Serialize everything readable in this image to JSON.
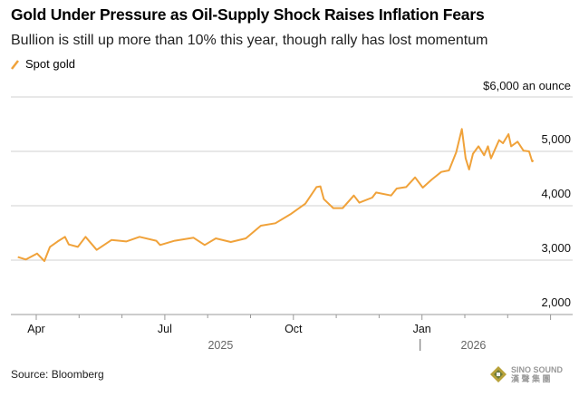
{
  "header": {
    "title": "Gold Under Pressure as Oil-Supply Shock Raises Inflation Fears",
    "subtitle": "Bullion is still up more than 10% this year, though rally has lost momentum"
  },
  "footer": {
    "source": "Source: Bloomberg",
    "logo_text": "SINO SOUND",
    "logo_subtext": "漢 聲 集 團"
  },
  "chart_data": {
    "type": "line",
    "title": "Gold Under Pressure as Oil-Supply Shock Raises Inflation Fears",
    "legend": [
      {
        "name": "Spot gold",
        "color": "#f0a23a"
      }
    ],
    "legend_placement": "top-left",
    "ylabel": "$6,000 an ounce",
    "ylim": [
      2000,
      6000
    ],
    "yticks": [
      {
        "v": 6000,
        "label": "$6,000 an ounce"
      },
      {
        "v": 5000,
        "label": "5,000"
      },
      {
        "v": 4000,
        "label": "4,000"
      },
      {
        "v": 3000,
        "label": "3,000"
      },
      {
        "v": 2000,
        "label": "2,000"
      }
    ],
    "x_unit": "months since 2025-04-01",
    "xlim": [
      -0.55,
      12.3
    ],
    "xticks": [
      {
        "m": 0,
        "label": "Apr"
      },
      {
        "m": 3,
        "label": "Jul"
      },
      {
        "m": 6,
        "label": "Oct"
      },
      {
        "m": 9,
        "label": "Jan"
      }
    ],
    "years": [
      {
        "m": 4.3,
        "label": "2025"
      },
      {
        "m": 10.2,
        "label": "2026"
      }
    ],
    "grid": true,
    "series": [
      {
        "name": "Spot gold",
        "color": "#f0a23a",
        "points": [
          [
            -0.43,
            3056
          ],
          [
            -0.24,
            3011
          ],
          [
            0.02,
            3122
          ],
          [
            0.19,
            2983
          ],
          [
            0.32,
            3244
          ],
          [
            0.5,
            3344
          ],
          [
            0.67,
            3428
          ],
          [
            0.76,
            3289
          ],
          [
            0.97,
            3244
          ],
          [
            1.15,
            3428
          ],
          [
            1.41,
            3189
          ],
          [
            1.76,
            3372
          ],
          [
            2.1,
            3344
          ],
          [
            2.41,
            3428
          ],
          [
            2.8,
            3356
          ],
          [
            2.89,
            3278
          ],
          [
            3.23,
            3356
          ],
          [
            3.67,
            3411
          ],
          [
            3.93,
            3278
          ],
          [
            4.19,
            3400
          ],
          [
            4.54,
            3333
          ],
          [
            4.89,
            3400
          ],
          [
            5.24,
            3633
          ],
          [
            5.58,
            3678
          ],
          [
            5.93,
            3844
          ],
          [
            6.28,
            4039
          ],
          [
            6.54,
            4344
          ],
          [
            6.63,
            4356
          ],
          [
            6.71,
            4122
          ],
          [
            6.93,
            3956
          ],
          [
            7.15,
            3956
          ],
          [
            7.41,
            4189
          ],
          [
            7.54,
            4056
          ],
          [
            7.84,
            4150
          ],
          [
            7.93,
            4244
          ],
          [
            8.28,
            4189
          ],
          [
            8.41,
            4317
          ],
          [
            8.63,
            4344
          ],
          [
            8.84,
            4522
          ],
          [
            9.02,
            4333
          ],
          [
            9.23,
            4483
          ],
          [
            9.45,
            4622
          ],
          [
            9.63,
            4650
          ],
          [
            9.8,
            4983
          ],
          [
            9.93,
            5411
          ],
          [
            10.02,
            4872
          ],
          [
            10.1,
            4667
          ],
          [
            10.19,
            4956
          ],
          [
            10.32,
            5094
          ],
          [
            10.45,
            4928
          ],
          [
            10.54,
            5094
          ],
          [
            10.61,
            4872
          ],
          [
            10.8,
            5206
          ],
          [
            10.89,
            5150
          ],
          [
            11.02,
            5317
          ],
          [
            11.08,
            5094
          ],
          [
            11.23,
            5178
          ],
          [
            11.37,
            5011
          ],
          [
            11.5,
            5000
          ],
          [
            11.57,
            4817
          ],
          [
            11.6,
            4833
          ]
        ]
      }
    ]
  }
}
